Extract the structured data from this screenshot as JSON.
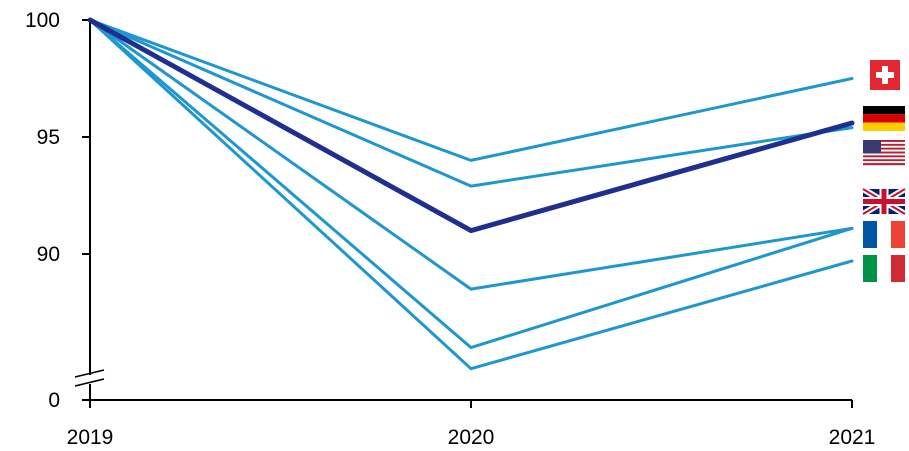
{
  "chart_data": {
    "type": "line",
    "x": [
      "2019",
      "2020",
      "2021"
    ],
    "y_ticks": [
      "0",
      "90",
      "95",
      "100"
    ],
    "y_axis_broken": true,
    "ylim": [
      85,
      100
    ],
    "highlight_color": "#1f2f8f",
    "series_color": "#1e96cf",
    "series": [
      {
        "values": [
          100,
          94.0,
          97.5
        ],
        "flag": "switzerland-flag"
      },
      {
        "values": [
          100,
          92.9,
          95.4
        ],
        "flag": "usa-flag"
      },
      {
        "values": [
          100,
          91.0,
          95.6
        ],
        "flag": "germany-flag",
        "highlight": true
      },
      {
        "values": [
          100,
          88.5,
          91.1
        ],
        "flag": "uk-flag"
      },
      {
        "values": [
          100,
          86.0,
          91.1
        ],
        "flag": "france-flag"
      },
      {
        "values": [
          100,
          85.1,
          89.7
        ],
        "flag": "italy-flag"
      }
    ]
  }
}
